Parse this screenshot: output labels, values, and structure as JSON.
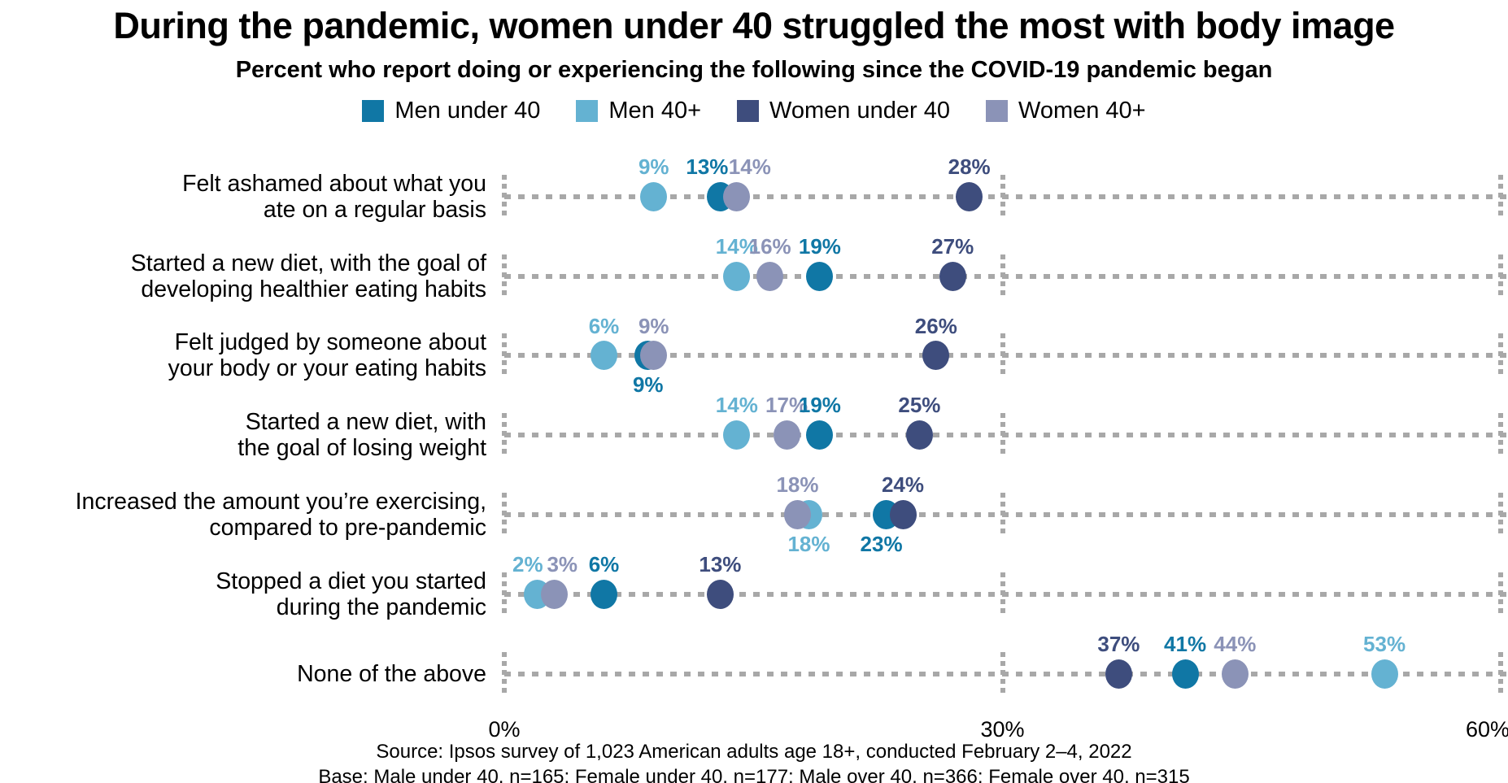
{
  "chart_data": {
    "type": "scatter",
    "title": "During the pandemic, women under 40 struggled the most with body image",
    "subtitle": "Percent who report doing or experiencing the following since the COVID-19 pandemic began",
    "grid_color": "#a8a8a8",
    "legend_position": "top-center",
    "series": [
      {
        "name": "Men under 40",
        "color": "#1077a5"
      },
      {
        "name": "Men 40+",
        "color": "#64b2d2"
      },
      {
        "name": "Women under 40",
        "color": "#3e4d7d"
      },
      {
        "name": "Women 40+",
        "color": "#8b93b7"
      }
    ],
    "x_axis": {
      "min": 0,
      "max": 60,
      "ticks": [
        {
          "label": "0%",
          "value": 0
        },
        {
          "label": "30%",
          "value": 30
        },
        {
          "label": "60%",
          "value": 60,
          "dx": -16
        }
      ]
    },
    "rows": [
      {
        "label": "Felt ashamed about what you\nate on a regular basis",
        "points": [
          {
            "series": 1,
            "value": 9,
            "label": "9%",
            "side": "above"
          },
          {
            "series": 0,
            "value": 13,
            "label": "13%",
            "side": "above",
            "label_dx": -16
          },
          {
            "series": 3,
            "value": 14,
            "label": "14%",
            "side": "above",
            "label_dx": 16
          },
          {
            "series": 2,
            "value": 28,
            "label": "28%",
            "side": "above"
          }
        ]
      },
      {
        "label": "Started a new diet, with the goal of\ndeveloping healthier eating habits",
        "points": [
          {
            "series": 1,
            "value": 14,
            "label": "14%",
            "side": "above"
          },
          {
            "series": 3,
            "value": 16,
            "label": "16%",
            "side": "above"
          },
          {
            "series": 0,
            "value": 19,
            "label": "19%",
            "side": "above"
          },
          {
            "series": 2,
            "value": 27,
            "label": "27%",
            "side": "above"
          }
        ]
      },
      {
        "label": "Felt judged by someone about\nyour body or your eating habits",
        "points": [
          {
            "series": 1,
            "value": 6,
            "label": "6%",
            "side": "above"
          },
          {
            "series": 0,
            "value": 9,
            "label": "9%",
            "side": "below",
            "dot_dx": -7
          },
          {
            "series": 3,
            "value": 9,
            "label": "9%",
            "side": "above"
          },
          {
            "series": 2,
            "value": 26,
            "label": "26%",
            "side": "above"
          }
        ]
      },
      {
        "label": "Started a new diet, with\nthe goal of losing weight",
        "points": [
          {
            "series": 1,
            "value": 14,
            "label": "14%",
            "side": "above"
          },
          {
            "series": 3,
            "value": 17,
            "label": "17%",
            "side": "above"
          },
          {
            "series": 0,
            "value": 19,
            "label": "19%",
            "side": "above"
          },
          {
            "series": 2,
            "value": 25,
            "label": "25%",
            "side": "above"
          }
        ]
      },
      {
        "label": "Increased the amount you’re exercising,\ncompared to pre-pandemic",
        "points": [
          {
            "series": 1,
            "value": 18,
            "label": "18%",
            "side": "below",
            "dot_dx": 7
          },
          {
            "series": 3,
            "value": 18,
            "label": "18%",
            "side": "above",
            "dot_dx": -7
          },
          {
            "series": 0,
            "value": 23,
            "label": "23%",
            "side": "below",
            "label_dx": -6
          },
          {
            "series": 2,
            "value": 24,
            "label": "24%",
            "side": "above"
          }
        ]
      },
      {
        "label": "Stopped a diet you started\nduring the pandemic",
        "points": [
          {
            "series": 1,
            "value": 2,
            "label": "2%",
            "side": "above",
            "label_dx": -12
          },
          {
            "series": 3,
            "value": 3,
            "label": "3%",
            "side": "above",
            "label_dx": 10
          },
          {
            "series": 0,
            "value": 6,
            "label": "6%",
            "side": "above"
          },
          {
            "series": 2,
            "value": 13,
            "label": "13%",
            "side": "above"
          }
        ]
      },
      {
        "label": "None of the above",
        "points": [
          {
            "series": 2,
            "value": 37,
            "label": "37%",
            "side": "above"
          },
          {
            "series": 0,
            "value": 41,
            "label": "41%",
            "side": "above"
          },
          {
            "series": 3,
            "value": 44,
            "label": "44%",
            "side": "above"
          },
          {
            "series": 1,
            "value": 53,
            "label": "53%",
            "side": "above"
          }
        ]
      }
    ],
    "source": "Source: Ipsos survey of 1,023 American adults age 18+, conducted February 2–4, 2022",
    "base": "Base: Male under 40, n=165; Female under 40, n=177; Male over 40, n=366; Female over 40, n=315"
  }
}
